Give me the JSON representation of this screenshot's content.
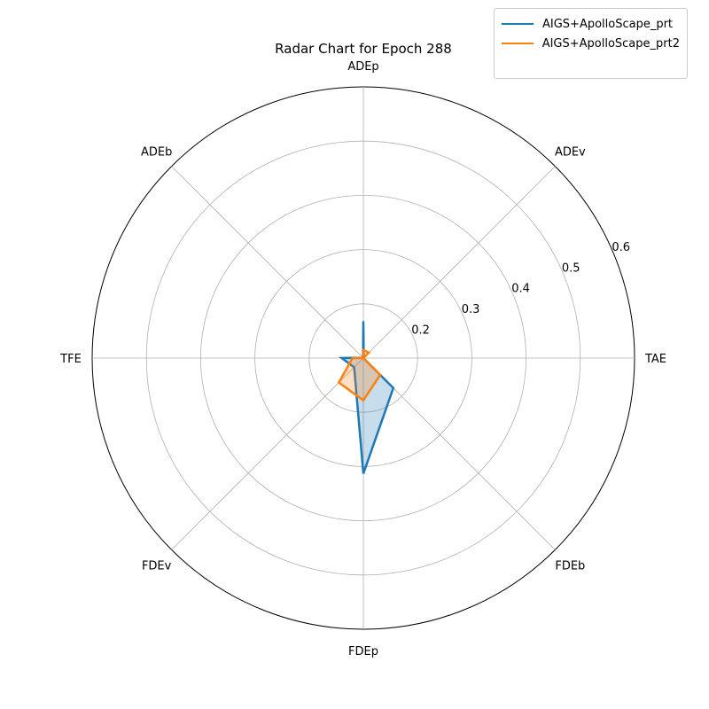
{
  "chart_data": {
    "type": "radar",
    "title": "Radar Chart for Epoch 288",
    "categories": [
      "ADEp",
      "ADEv",
      "TAE",
      "FDEb",
      "FDEp",
      "FDEv",
      "TFE",
      "ADEb"
    ],
    "rmin": 0.1,
    "rmax": 0.6,
    "rticks": [
      0.2,
      0.3,
      0.4,
      0.5,
      0.6
    ],
    "grid": true,
    "legend_position": "top-right",
    "series": [
      {
        "name": "AIGS+ApolloScape_prt",
        "color": "#1f77b4",
        "values": [
          0.168,
          0.101,
          0.1,
          0.178,
          0.313,
          0.124,
          0.14,
          0.101
        ]
      },
      {
        "name": "AIGS+ApolloScape_prt2",
        "color": "#ff7f0e",
        "values": [
          0.115,
          0.114,
          0.1,
          0.144,
          0.178,
          0.164,
          0.12,
          0.1
        ]
      }
    ]
  }
}
